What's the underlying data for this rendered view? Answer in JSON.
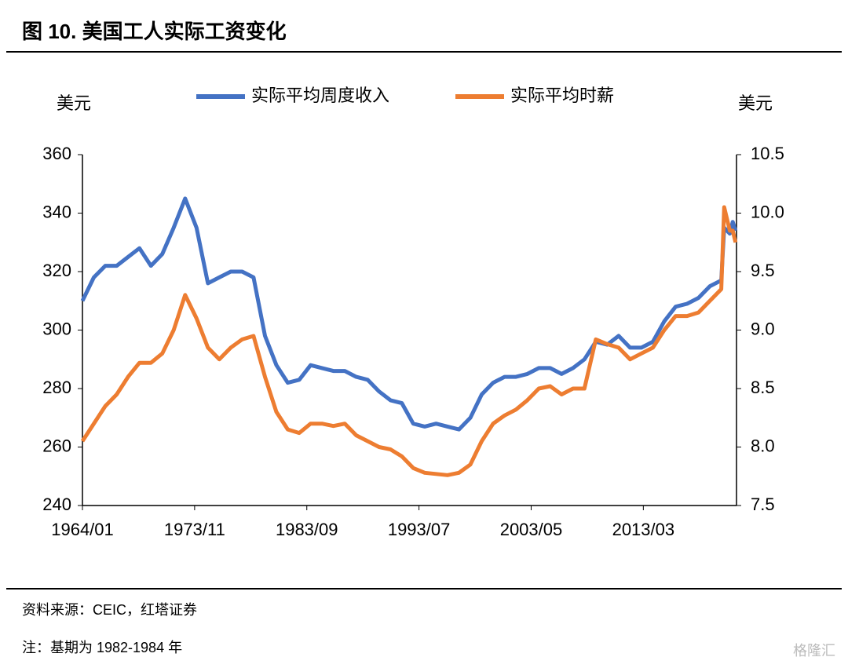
{
  "header": {
    "title": "图 10. 美国工人实际工资变化"
  },
  "chart_data": {
    "type": "line",
    "y_label": "美元",
    "y2_label": "美元",
    "x": [
      "1964/01",
      "1965/01",
      "1966/01",
      "1967/01",
      "1968/01",
      "1969/01",
      "1970/01",
      "1971/01",
      "1972/01",
      "1973/01",
      "1974/01",
      "1975/01",
      "1976/01",
      "1977/01",
      "1978/01",
      "1979/01",
      "1980/01",
      "1981/01",
      "1982/01",
      "1983/01",
      "1984/01",
      "1985/01",
      "1986/01",
      "1987/01",
      "1988/01",
      "1989/01",
      "1990/01",
      "1991/01",
      "1992/01",
      "1993/01",
      "1994/01",
      "1995/01",
      "1996/01",
      "1997/01",
      "1998/01",
      "1999/01",
      "2000/01",
      "2001/01",
      "2002/01",
      "2003/01",
      "2004/01",
      "2005/01",
      "2006/01",
      "2007/01",
      "2008/01",
      "2009/01",
      "2010/01",
      "2011/01",
      "2012/01",
      "2013/01",
      "2014/01",
      "2015/01",
      "2016/01",
      "2017/01",
      "2018/01",
      "2019/01",
      "2020/01",
      "2020/04",
      "2020/10",
      "2021/01",
      "2021/04"
    ],
    "series": [
      {
        "name": "实际平均周度收入",
        "color": "#4472c4",
        "axis": "y",
        "values": [
          310,
          318,
          322,
          322,
          325,
          328,
          322,
          326,
          335,
          345,
          335,
          316,
          318,
          320,
          320,
          318,
          298,
          288,
          282,
          283,
          288,
          287,
          286,
          286,
          284,
          283,
          279,
          276,
          275,
          268,
          267,
          268,
          267,
          266,
          270,
          278,
          282,
          284,
          284,
          285,
          287,
          287,
          285,
          287,
          290,
          296,
          295,
          298,
          294,
          294,
          296,
          303,
          308,
          309,
          311,
          315,
          317,
          335,
          333,
          337,
          334
        ]
      },
      {
        "name": "实际平均时薪",
        "color": "#ed7d31",
        "axis": "y2",
        "values": [
          8.05,
          8.2,
          8.35,
          8.45,
          8.6,
          8.72,
          8.72,
          8.8,
          9.0,
          9.3,
          9.1,
          8.85,
          8.75,
          8.85,
          8.92,
          8.95,
          8.6,
          8.3,
          8.15,
          8.12,
          8.2,
          8.2,
          8.18,
          8.2,
          8.1,
          8.05,
          8.0,
          7.98,
          7.92,
          7.82,
          7.78,
          7.77,
          7.76,
          7.78,
          7.85,
          8.05,
          8.2,
          8.27,
          8.32,
          8.4,
          8.5,
          8.52,
          8.45,
          8.5,
          8.5,
          8.92,
          8.88,
          8.85,
          8.75,
          8.8,
          8.85,
          9.0,
          9.12,
          9.12,
          9.15,
          9.25,
          9.35,
          10.05,
          9.85,
          9.85,
          9.75
        ]
      }
    ],
    "xlim": [
      "1964/01",
      "2021/05"
    ],
    "xticks": [
      "1964/01",
      "1973/11",
      "1983/09",
      "1993/07",
      "2003/05",
      "2013/03"
    ],
    "ylim": [
      240,
      360
    ],
    "yticks": [
      240,
      260,
      280,
      300,
      320,
      340,
      360
    ],
    "y2lim": [
      7.5,
      10.5
    ],
    "y2ticks": [
      {
        "value": 7.5,
        "label": "7.5"
      },
      {
        "value": 8,
        "label": "8.0"
      },
      {
        "value": 8.5,
        "label": "8.5"
      },
      {
        "value": 9,
        "label": "9.0"
      },
      {
        "value": 9.5,
        "label": "9.5"
      },
      {
        "value": 10,
        "label": "10.0"
      },
      {
        "value": 10.5,
        "label": "10.5"
      }
    ],
    "grid": false
  },
  "footer": {
    "source": "资料来源：CEIC，红塔证券",
    "note": "注：基期为 1982-1984 年",
    "watermark": "格隆汇"
  }
}
